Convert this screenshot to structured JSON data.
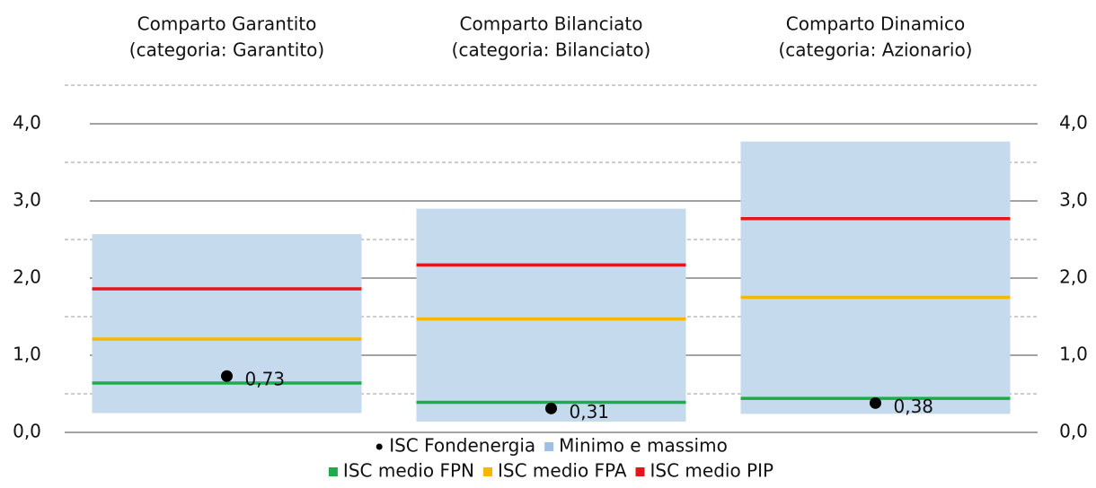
{
  "chart_data": {
    "type": "range",
    "categories": [
      "Comparto Garantito",
      "Comparto Bilanciato",
      "Comparto Dinamico"
    ],
    "category_notes": [
      "(categoria: Garantito)",
      "(categoria: Bilanciato)",
      "(categoria: Azionario)"
    ],
    "ylim": [
      0,
      4.5
    ],
    "yticks": [
      {
        "value": 0,
        "label": "0,0"
      },
      {
        "value": 1,
        "label": "1,0"
      },
      {
        "value": 2,
        "label": "2,0"
      },
      {
        "value": 3,
        "label": "3,0"
      },
      {
        "value": 4,
        "label": "4,0"
      }
    ],
    "minor_yticks": [
      0.5,
      1.5,
      2.5,
      3.5,
      4.5
    ],
    "grid": true,
    "legend": "bottom",
    "series": [
      {
        "name": "ISC Fondenergia",
        "kind": "point",
        "color": "#000000",
        "values": [
          0.73,
          0.31,
          0.38
        ],
        "value_labels": [
          "0,73",
          "0,31",
          "0,38"
        ]
      },
      {
        "name": "Minimo e massimo",
        "kind": "range",
        "color": "#c6daee",
        "values": [
          [
            0.25,
            2.57
          ],
          [
            0.14,
            2.9
          ],
          [
            0.24,
            3.77
          ]
        ]
      },
      {
        "name": "ISC medio FPN",
        "kind": "level",
        "color": "#1aae4a",
        "values": [
          0.64,
          0.39,
          0.44
        ]
      },
      {
        "name": "ISC medio FPA",
        "kind": "level",
        "color": "#f4b800",
        "values": [
          1.21,
          1.47,
          1.75
        ]
      },
      {
        "name": "ISC medio PIP",
        "kind": "level",
        "color": "#e5161b",
        "values": [
          1.86,
          2.17,
          2.77
        ]
      }
    ]
  }
}
